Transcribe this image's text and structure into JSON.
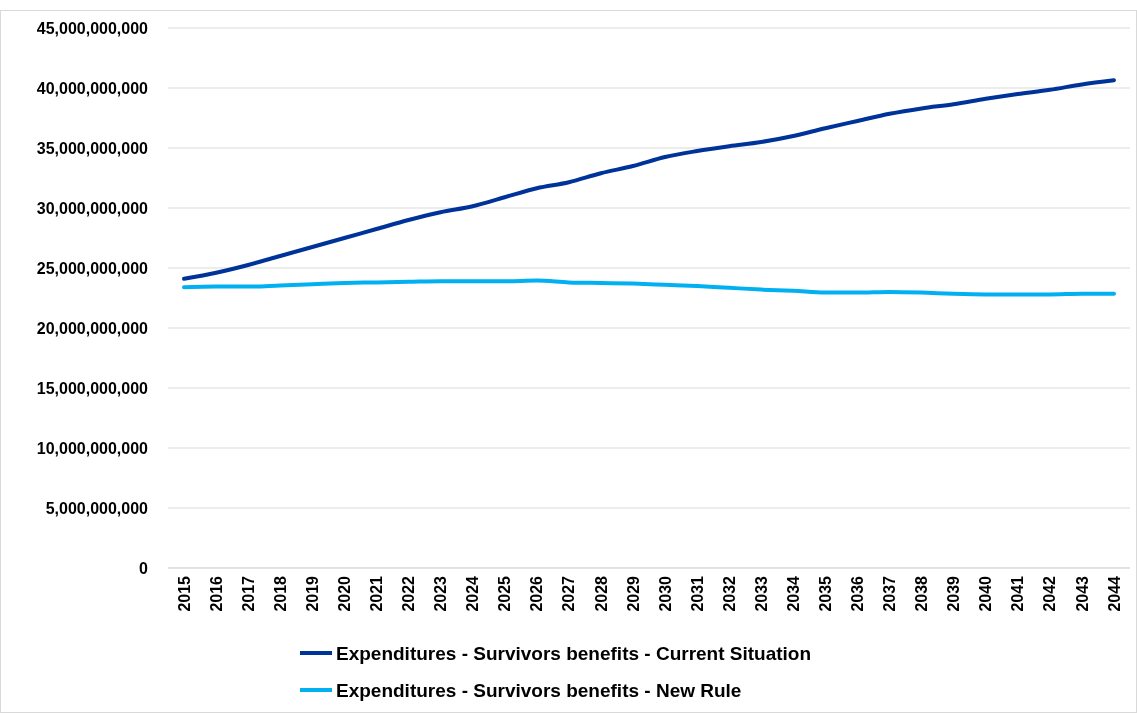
{
  "chart_data": {
    "type": "line",
    "categories": [
      "2015",
      "2016",
      "2017",
      "2018",
      "2019",
      "2020",
      "2021",
      "2022",
      "2023",
      "2024",
      "2025",
      "2026",
      "2027",
      "2028",
      "2029",
      "2030",
      "2031",
      "2032",
      "2033",
      "2034",
      "2035",
      "2036",
      "2037",
      "2038",
      "2039",
      "2040",
      "2041",
      "2042",
      "2043",
      "2044"
    ],
    "series": [
      {
        "name": "Expenditures - Survivors benefits - Current Situation",
        "color": "#003399",
        "values": [
          24100000000,
          24600000000,
          25250000000,
          26000000000,
          26750000000,
          27500000000,
          28250000000,
          29000000000,
          29650000000,
          30150000000,
          30900000000,
          31650000000,
          32150000000,
          32900000000,
          33500000000,
          34250000000,
          34750000000,
          35150000000,
          35500000000,
          36000000000,
          36650000000,
          37250000000,
          37850000000,
          38300000000,
          38650000000,
          39100000000,
          39500000000,
          39850000000,
          40300000000,
          40650000000
        ]
      },
      {
        "name": "Expenditures - Survivors benefits - New Rule",
        "color": "#00b0f0",
        "values": [
          23400000000,
          23450000000,
          23450000000,
          23550000000,
          23650000000,
          23750000000,
          23800000000,
          23850000000,
          23900000000,
          23900000000,
          23900000000,
          23950000000,
          23800000000,
          23750000000,
          23700000000,
          23600000000,
          23500000000,
          23350000000,
          23200000000,
          23100000000,
          22950000000,
          22950000000,
          23000000000,
          22950000000,
          22850000000,
          22800000000,
          22800000000,
          22800000000,
          22850000000,
          22850000000
        ]
      }
    ],
    "ylim": [
      0,
      45000000000
    ],
    "yticks": [
      {
        "value": 0,
        "label": "0"
      },
      {
        "value": 5000000000,
        "label": "5,000,000,000"
      },
      {
        "value": 10000000000,
        "label": "10,000,000,000"
      },
      {
        "value": 15000000000,
        "label": "15,000,000,000"
      },
      {
        "value": 20000000000,
        "label": "20,000,000,000"
      },
      {
        "value": 25000000000,
        "label": "25,000,000,000"
      },
      {
        "value": 30000000000,
        "label": "30,000,000,000"
      },
      {
        "value": 35000000000,
        "label": "35,000,000,000"
      },
      {
        "value": 40000000000,
        "label": "40,000,000,000"
      },
      {
        "value": 45000000000,
        "label": "45,000,000,000"
      }
    ],
    "grid": "y",
    "legend": "bottom",
    "marker": "none",
    "line_style": "solid"
  }
}
